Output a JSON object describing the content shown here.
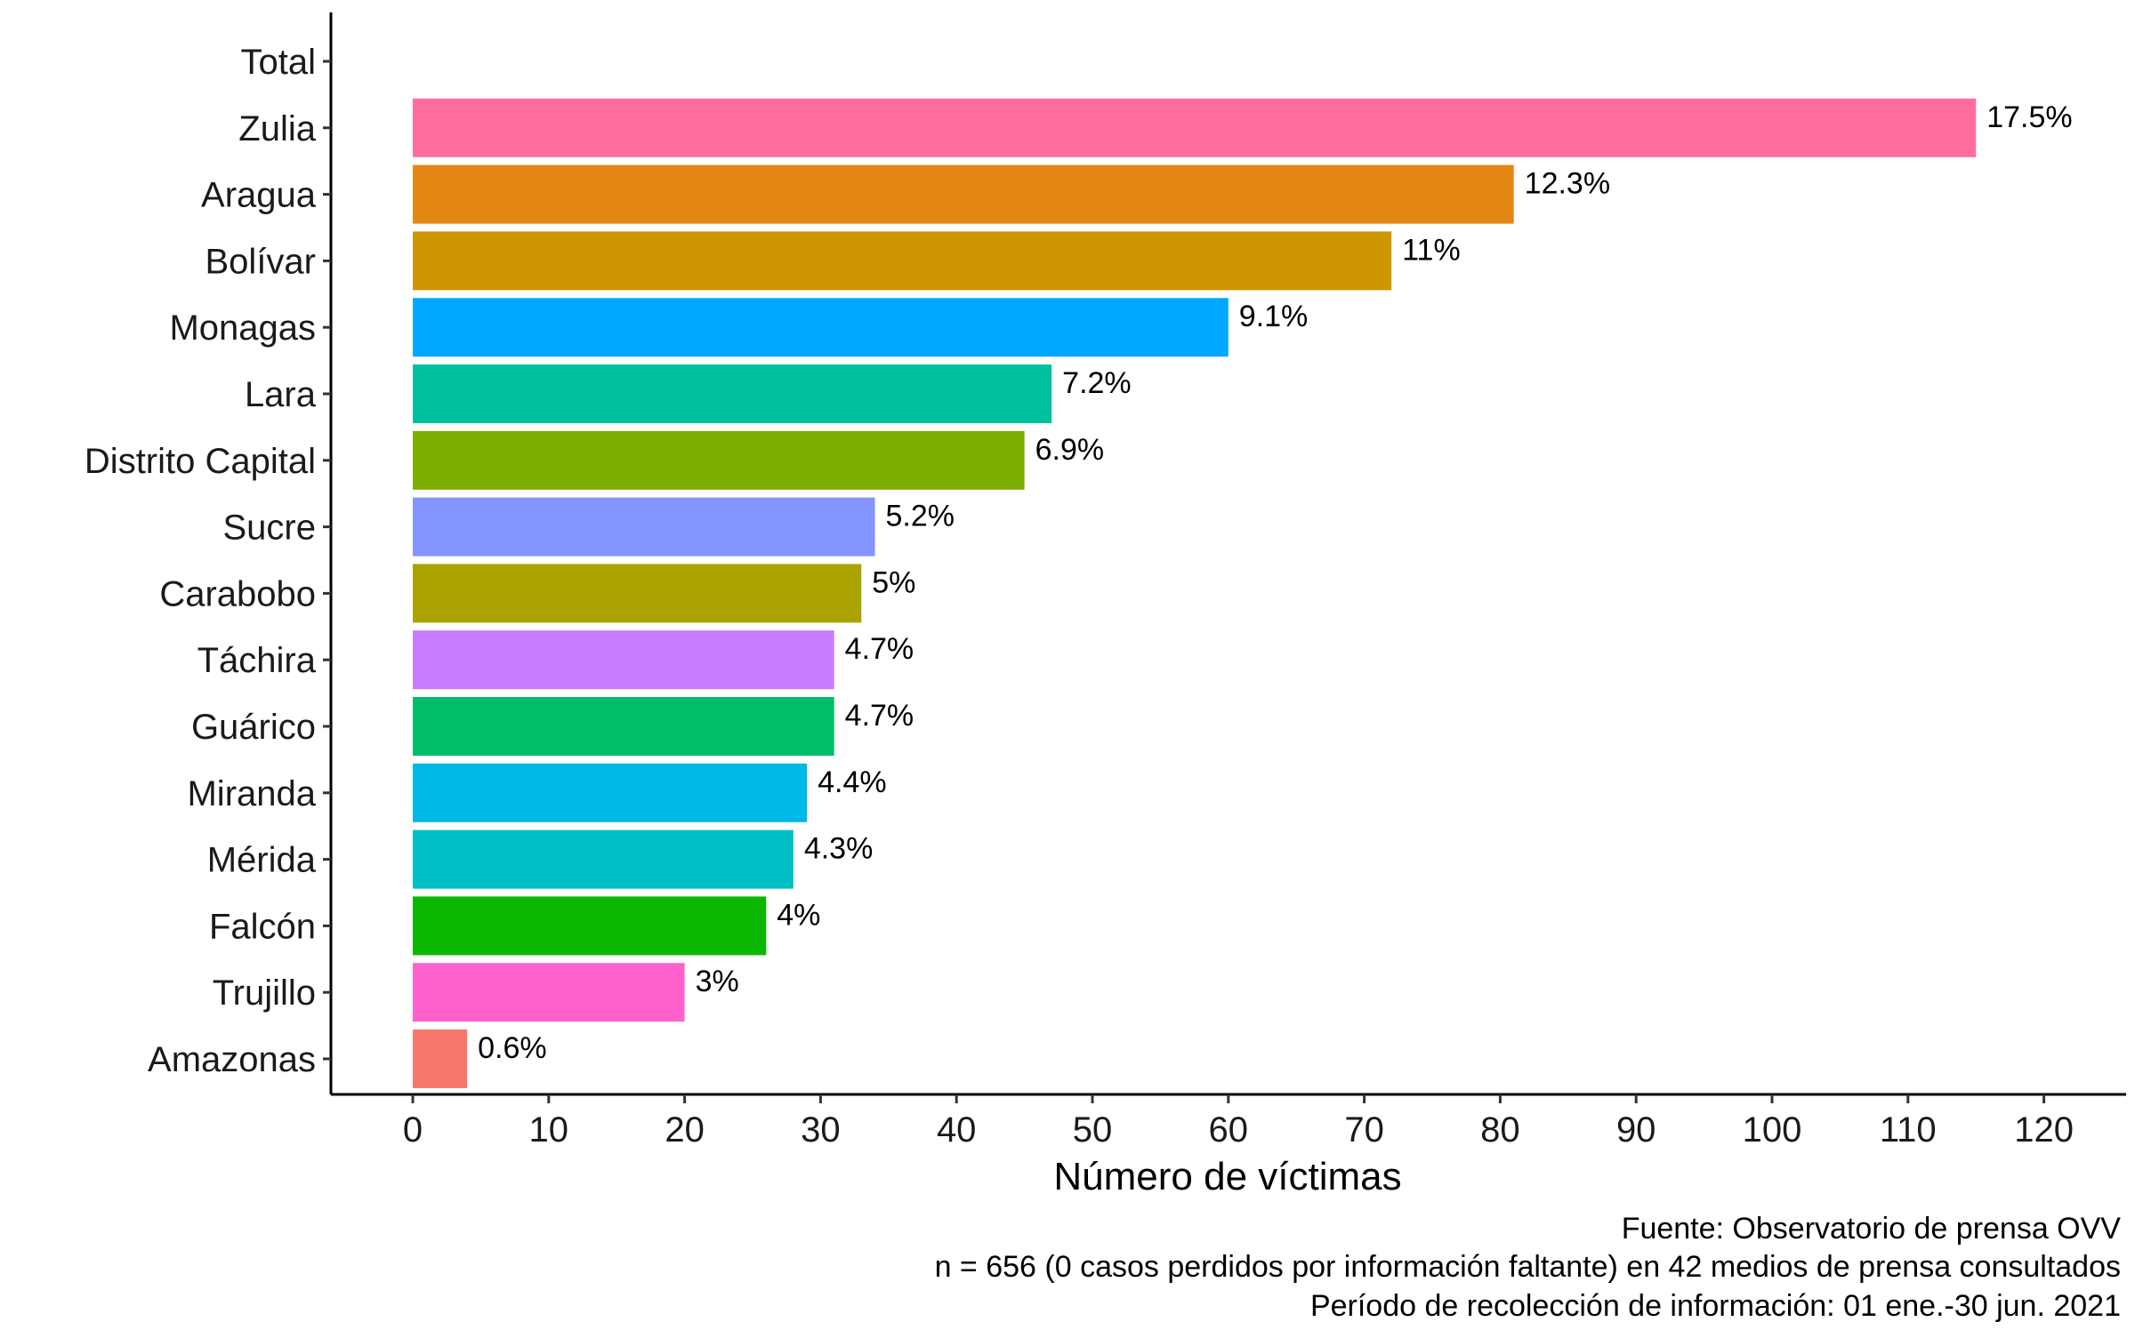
{
  "chart_data": {
    "type": "bar",
    "orientation": "horizontal",
    "categories": [
      "Total",
      "Zulia",
      "Aragua",
      "Bolívar",
      "Monagas",
      "Lara",
      "Distrito Capital",
      "Sucre",
      "Carabobo",
      "Táchira",
      "Guárico",
      "Miranda",
      "Mérida",
      "Falcón",
      "Trujillo",
      "Amazonas"
    ],
    "values": [
      null,
      115,
      81,
      72,
      60,
      47,
      45,
      34,
      33,
      31,
      31,
      29,
      28,
      26,
      20,
      4
    ],
    "labels": [
      "",
      "17.5%",
      "12.3%",
      "11%",
      "9.1%",
      "7.2%",
      "6.9%",
      "5.2%",
      "5%",
      "4.7%",
      "4.7%",
      "4.4%",
      "4.3%",
      "4%",
      "3%",
      "0.6%"
    ],
    "colors": [
      "#ffffff",
      "#FF6C9F",
      "#E58714",
      "#CE9600",
      "#00A9FF",
      "#00C19F",
      "#7CAE00",
      "#8494FF",
      "#ABA300",
      "#C77CFF",
      "#00BE67",
      "#00B8E7",
      "#00BFC4",
      "#0CB702",
      "#FF61CC",
      "#F8766D"
    ],
    "xlabel": "Número de víctimas",
    "ylabel": "",
    "xlim": [
      -6,
      126
    ],
    "xticks": [
      0,
      10,
      20,
      30,
      40,
      50,
      60,
      70,
      80,
      90,
      100,
      110,
      120
    ],
    "grid": false,
    "legend": "none",
    "caption": [
      "Fuente: Observatorio de prensa OVV",
      "n = 656 (0 casos perdidos por información faltante) en 42 medios de prensa consultados",
      "Período de recolección de información: 01 ene.-30 jun. 2021"
    ]
  }
}
